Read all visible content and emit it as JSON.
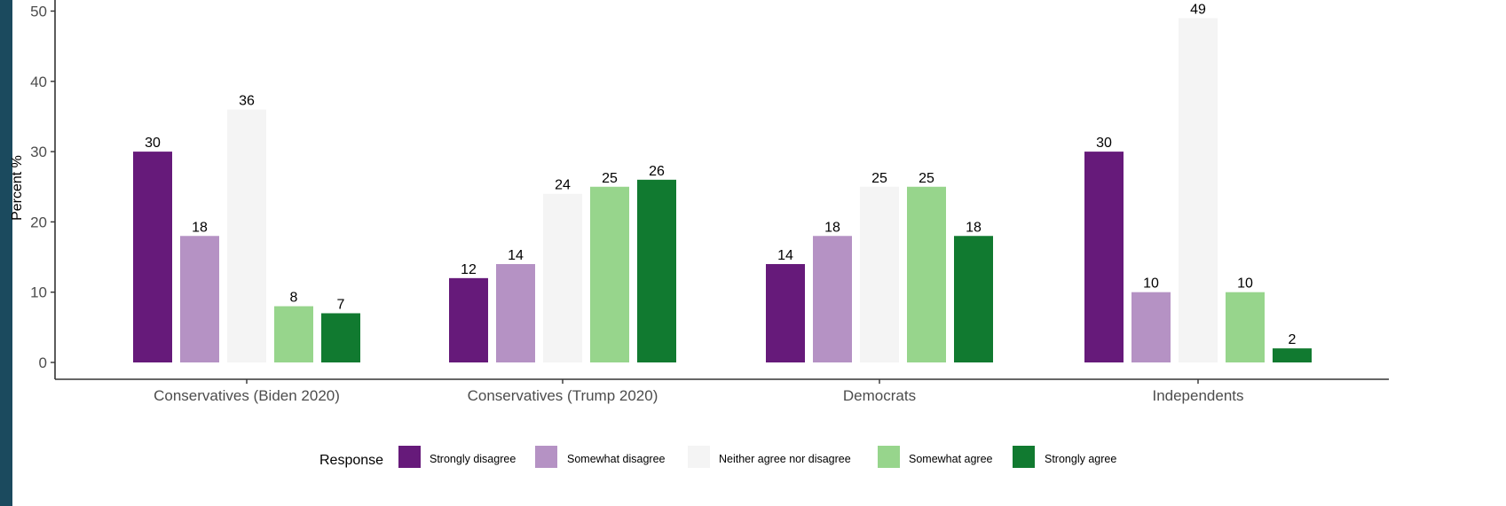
{
  "colors": {
    "left_stripe": "#1b4a5e",
    "axis": "#333333"
  },
  "chart_data": {
    "type": "bar",
    "title": "",
    "xlabel": "",
    "ylabel": "Percent %",
    "ylim": [
      0,
      51
    ],
    "yticks": [
      0,
      10,
      20,
      30,
      40,
      50
    ],
    "grid": false,
    "legend_position": "bottom",
    "legend_title": "Response",
    "categories": [
      "Conservatives (Biden 2020)",
      "Conservatives (Trump 2020)",
      "Democrats",
      "Independents"
    ],
    "series": [
      {
        "name": "Strongly disagree",
        "color": "#661a7a",
        "values": [
          30,
          12,
          14,
          30
        ]
      },
      {
        "name": "Somewhat disagree",
        "color": "#b592c4",
        "values": [
          18,
          14,
          18,
          10
        ]
      },
      {
        "name": "Neither agree nor disagree",
        "color": "#f4f4f4",
        "values": [
          36,
          24,
          25,
          49
        ]
      },
      {
        "name": "Somewhat agree",
        "color": "#97d58c",
        "values": [
          8,
          25,
          25,
          10
        ]
      },
      {
        "name": "Strongly agree",
        "color": "#117a30",
        "values": [
          7,
          26,
          18,
          2
        ]
      }
    ]
  }
}
